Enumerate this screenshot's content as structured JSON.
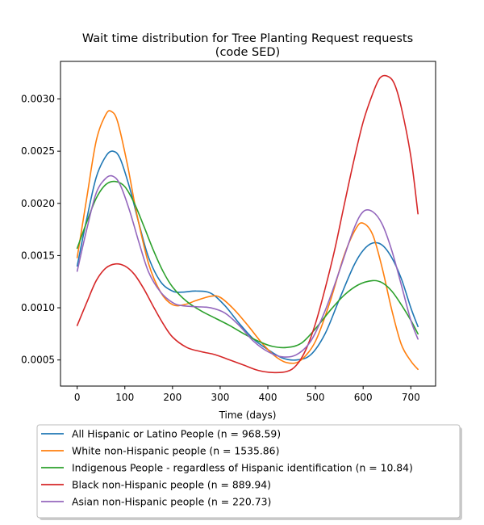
{
  "chart_data": {
    "type": "line",
    "title_lines": [
      "Wait time distribution  for Tree Planting Request  requests",
      "(code SED)"
    ],
    "xlabel": "Time (days)",
    "ylabel": "",
    "xlim": [
      -35,
      752
    ],
    "ylim": [
      0.00025,
      0.00336
    ],
    "x_ticks": [
      0,
      100,
      200,
      300,
      400,
      500,
      600,
      700
    ],
    "x_tick_labels": [
      "0",
      "100",
      "200",
      "300",
      "400",
      "500",
      "600",
      "700"
    ],
    "y_ticks": [
      0.0005,
      0.001,
      0.0015,
      0.002,
      0.0025,
      0.003
    ],
    "y_tick_labels": [
      "0.0005",
      "0.0010",
      "0.0015",
      "0.0020",
      "0.0025",
      "0.0030"
    ],
    "grid": false,
    "legend_position": "bottom-outside",
    "series": [
      {
        "name": "All Hispanic or Latino People (n = 968.59)",
        "color": "#1f77b4",
        "x": [
          0,
          20,
          40,
          60,
          75,
          90,
          110,
          130,
          150,
          175,
          200,
          220,
          250,
          280,
          310,
          340,
          370,
          400,
          430,
          460,
          490,
          520,
          550,
          580,
          600,
          620,
          640,
          660,
          680,
          700,
          715
        ],
        "y": [
          0.0014,
          0.00185,
          0.00225,
          0.00245,
          0.0025,
          0.00243,
          0.00215,
          0.0018,
          0.00148,
          0.00125,
          0.00116,
          0.00115,
          0.00116,
          0.00114,
          0.00102,
          0.00085,
          0.0007,
          0.0006,
          0.00052,
          0.0005,
          0.00055,
          0.00075,
          0.00108,
          0.0014,
          0.00155,
          0.00162,
          0.0016,
          0.00148,
          0.00128,
          0.001,
          0.00082
        ]
      },
      {
        "name": "White non-Hispanic people (n = 1535.86)",
        "color": "#ff7f0e",
        "x": [
          0,
          20,
          40,
          60,
          72,
          85,
          105,
          125,
          150,
          175,
          200,
          225,
          250,
          280,
          300,
          330,
          360,
          390,
          420,
          445,
          470,
          500,
          530,
          560,
          585,
          600,
          620,
          640,
          660,
          680,
          700,
          715
        ],
        "y": [
          0.00148,
          0.00205,
          0.0026,
          0.00285,
          0.00288,
          0.00278,
          0.00238,
          0.0019,
          0.00142,
          0.00115,
          0.00103,
          0.00103,
          0.00107,
          0.00111,
          0.0011,
          0.00098,
          0.00082,
          0.00065,
          0.00052,
          0.00047,
          0.0005,
          0.00068,
          0.00105,
          0.0015,
          0.00176,
          0.00181,
          0.0017,
          0.00138,
          0.00098,
          0.00065,
          0.00049,
          0.00041
        ]
      },
      {
        "name": "Indigenous People - regardless of Hispanic identification (n = 10.84)",
        "color": "#2ca02c",
        "x": [
          0,
          20,
          40,
          60,
          80,
          100,
          120,
          140,
          160,
          180,
          200,
          230,
          260,
          290,
          320,
          350,
          380,
          410,
          440,
          470,
          500,
          530,
          560,
          590,
          620,
          640,
          660,
          680,
          700,
          715
        ],
        "y": [
          0.00157,
          0.00182,
          0.00205,
          0.00218,
          0.00221,
          0.00216,
          0.002,
          0.00178,
          0.00155,
          0.00135,
          0.0012,
          0.00106,
          0.00097,
          0.0009,
          0.00083,
          0.00075,
          0.00068,
          0.00063,
          0.00062,
          0.00066,
          0.0008,
          0.00097,
          0.00112,
          0.00122,
          0.00126,
          0.00124,
          0.00116,
          0.00103,
          0.00088,
          0.00075
        ]
      },
      {
        "name": "Black non-Hispanic people (n = 889.94)",
        "color": "#d62728",
        "x": [
          0,
          20,
          40,
          60,
          80,
          100,
          120,
          140,
          160,
          180,
          200,
          230,
          260,
          290,
          320,
          350,
          380,
          410,
          440,
          460,
          480,
          500,
          520,
          540,
          560,
          580,
          600,
          620,
          635,
          650,
          665,
          680,
          700,
          715
        ],
        "y": [
          0.00083,
          0.00105,
          0.00126,
          0.00138,
          0.00142,
          0.0014,
          0.00132,
          0.00118,
          0.00101,
          0.00085,
          0.00072,
          0.00062,
          0.00058,
          0.00055,
          0.0005,
          0.00045,
          0.0004,
          0.00038,
          0.00039,
          0.00045,
          0.0006,
          0.00085,
          0.00118,
          0.00155,
          0.00198,
          0.0024,
          0.00278,
          0.00305,
          0.0032,
          0.00322,
          0.00315,
          0.00292,
          0.00245,
          0.0019
        ]
      },
      {
        "name": "Asian non-Hispanic people (n = 220.73)",
        "color": "#9467bd",
        "x": [
          0,
          20,
          40,
          60,
          75,
          90,
          110,
          130,
          150,
          175,
          200,
          220,
          250,
          280,
          310,
          340,
          370,
          400,
          430,
          460,
          490,
          520,
          550,
          580,
          600,
          620,
          640,
          660,
          680,
          700,
          715
        ],
        "y": [
          0.00135,
          0.00175,
          0.0021,
          0.00224,
          0.00226,
          0.00218,
          0.00193,
          0.00162,
          0.00134,
          0.00115,
          0.00105,
          0.00102,
          0.00101,
          0.001,
          0.00095,
          0.00083,
          0.00068,
          0.00058,
          0.00053,
          0.00055,
          0.00068,
          0.00097,
          0.00135,
          0.00175,
          0.00192,
          0.00192,
          0.0018,
          0.00155,
          0.00122,
          0.00088,
          0.0007
        ]
      }
    ]
  }
}
